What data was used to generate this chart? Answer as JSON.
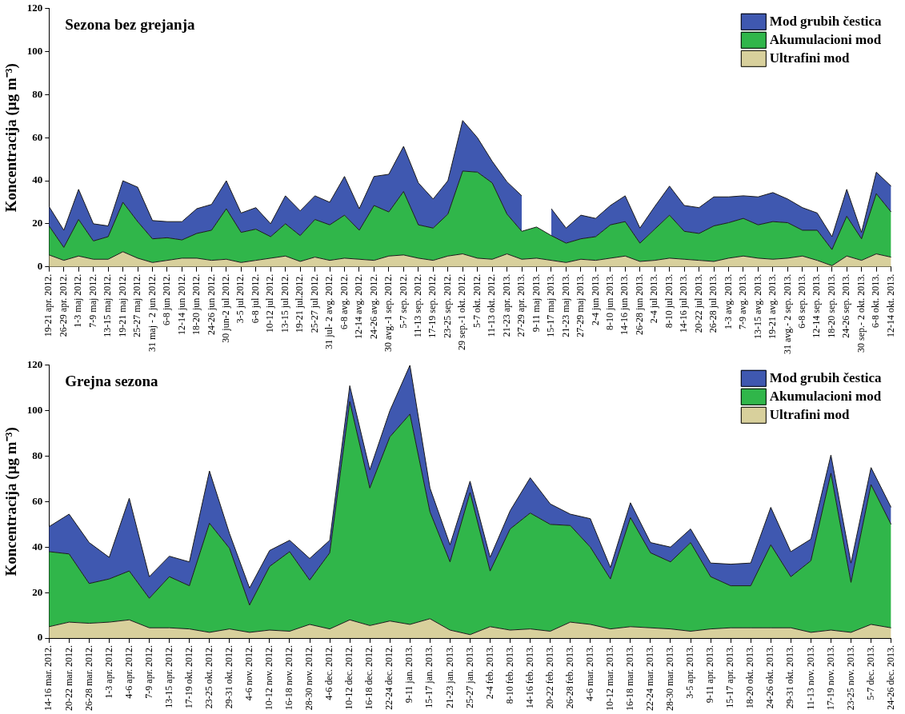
{
  "chart_data": [
    {
      "type": "area",
      "title": "Sezona bez grejanja",
      "ylabel": "Koncentracija (µg m⁻³)",
      "stacked": true,
      "legend": "top right",
      "ylim": [
        0,
        120
      ],
      "yticks": [
        0,
        20,
        40,
        60,
        80,
        100,
        120
      ],
      "categories": [
        "19-21 apr. 2012.",
        "26-29 apr. 2012.",
        "1-3 maj 2012.",
        "7-9 maj 2012.",
        "13-15 maj 2012.",
        "19-21 maj 2012.",
        "25-27 maj 2012.",
        "31 maj - 2 jun 2012.",
        "6-8 jun 2012.",
        "12-14 jun 2012.",
        "18-20 jun 2012.",
        "24-26 jun 2012.",
        "30 jun-2 jul 2012.",
        "3-5 jul 2012.",
        "6-8 jul 2012.",
        "10-12 jul 2012.",
        "13-15 jul 2012.",
        "19-21 jul.2012.",
        "25-27 jul 2012.",
        "31 jul- 2 avg. 2012.",
        "6-8 avg. 2012.",
        "12-14 avg. 2012.",
        "24-26 avg. 2012.",
        "30 avg.-1 sep. 2012.",
        "5-7 sep. 2012.",
        "11-13 sep. 2012.",
        "17-19 sep. 2012.",
        "23-25 sep. 2012.",
        "29 sep.-1 okt. 2012.",
        "5-7 okt. 2012.",
        "11-13 okt. 2012.",
        "21-23 apr. 2013.",
        "27-29 apr. 2013.",
        "9-11 maj 2013.",
        "15-17 maj 2013.",
        "21-23 maj 2013.",
        "27-29 maj 2013.",
        "2-4 jun 2013.",
        "8-10 jun 2013.",
        "14-16 jun 2013.",
        "26-28 jun 2013.",
        "2-4 jul 2013.",
        "8-10 jul 2013.",
        "14-16 jul 2013.",
        "20-22 jul 2013.",
        "26-28 jul 2013.",
        "1-3 avg. 2013.",
        "7-9 avg. 2013.",
        "13-15 avg. 2013.",
        "19-21 avg. 2013.",
        "31 avg.- 2 sep. 2013.",
        "6-8 sep. 2013.",
        "12-14 sep. 2013.",
        "18-20 sep. 2013.",
        "24-26 sep. 2013.",
        "30 sep.- 2 okt. 2013.",
        "6-8 okt. 2013.",
        "12-14 okt. 2013."
      ],
      "series": [
        {
          "name": "Ultrafini mod",
          "color": "#d8d09c",
          "values": [
            5.5,
            3,
            5,
            3.5,
            3.5,
            7,
            4,
            2,
            3,
            4,
            4,
            3,
            3.5,
            2,
            3,
            4,
            5,
            2.5,
            4.5,
            3,
            4,
            3.5,
            3,
            5,
            5.5,
            4,
            3,
            5,
            6,
            4,
            3.5,
            6,
            3.5,
            4,
            3,
            2,
            3.5,
            3,
            4,
            5,
            2.5,
            3,
            4,
            3.5,
            3,
            2.5,
            4,
            5,
            4,
            3.5,
            4,
            5,
            3,
            0.5,
            5,
            3,
            6,
            4.5
          ]
        },
        {
          "name": "Akumulacioni mod",
          "color": "#30b64a",
          "values": [
            13.5,
            6,
            17,
            8.5,
            10.5,
            23,
            17,
            11,
            10.5,
            8.5,
            11.5,
            14,
            23.5,
            14,
            14.5,
            10,
            15,
            12,
            17.5,
            16.5,
            20,
            13.5,
            25.5,
            20.5,
            29.5,
            15.5,
            15,
            19.5,
            38.5,
            40,
            35.5,
            18.5,
            13,
            14.5,
            11.5,
            9,
            9.5,
            11,
            15.5,
            16,
            8.5,
            14.5,
            20,
            13,
            12.5,
            16.5,
            16.5,
            17.5,
            15.5,
            17.5,
            16.5,
            12,
            14,
            7.5,
            18.5,
            10,
            28,
            21
          ]
        },
        {
          "name": "Mod grubih čestica",
          "color": "#3f58b0",
          "values": [
            9,
            8,
            14,
            8,
            5,
            10,
            16,
            8.5,
            7.5,
            8.5,
            11.5,
            12,
            13,
            9,
            10,
            6,
            13,
            11.5,
            11,
            10.5,
            18,
            10,
            13.5,
            17.5,
            21,
            19.5,
            13.5,
            15.5,
            23.5,
            16,
            10,
            15,
            16.5,
            null,
            12.5,
            7,
            11,
            8.5,
            9,
            12,
            7,
            10.5,
            13.5,
            12,
            12,
            13.5,
            12,
            10.5,
            13,
            13.5,
            11,
            10.5,
            8,
            6,
            12.5,
            3,
            10,
            12
          ]
        }
      ]
    },
    {
      "type": "area",
      "title": "Grejna sezona",
      "ylabel": "Koncentracija (µg m⁻³)",
      "stacked": true,
      "legend": "top right",
      "ylim": [
        0,
        120
      ],
      "yticks": [
        0,
        20,
        40,
        60,
        80,
        100,
        120
      ],
      "categories": [
        "14-16 mar. 2012.",
        "20-22 mar. 2012.",
        "26-28 mar. 2012.",
        "1-3 apr. 2012.",
        "4-6 apr. 2012.",
        "7-9 apr. 2012.",
        "13-15 apr. 2012.",
        "17-19 okt. 2012.",
        "23-25 okt. 2012.",
        "29-31 okt. 2012.",
        "4-6 nov. 2012.",
        "10-12 nov. 2012.",
        "16-18 nov. 2012.",
        "28-30 nov. 2012.",
        "4-6 dec. 2012.",
        "10-12 dec. 2012.",
        "16-18 dec. 2012.",
        "22-24 dec. 2012.",
        "9-11 jan. 2013.",
        "15-17 jan. 2013.",
        "21-23 jan. 2013.",
        "25-27 jan. 2013.",
        "2-4 feb. 2013.",
        "8-10 feb. 2013.",
        "14-16 feb. 2013.",
        "20-22 feb. 2013.",
        "26-28 feb. 2013.",
        "4-6 mar. 2013.",
        "10-12 mar. 2013.",
        "16-18 mar. 2013.",
        "22-24 mar. 2013.",
        "28-30 mar. 2013.",
        "3-5 apr. 2013.",
        "9-11 apr. 2013.",
        "15-17 apr. 2013.",
        "18-20 okt. 2013.",
        "24-26 okt. 2013.",
        "29-31 okt. 2013.",
        "11-13 nov. 2013.",
        "17-19 nov. 2013.",
        "23-25 nov. 2013.",
        "5-7 dec. 2013.",
        "24-26 dec. 2013."
      ],
      "series": [
        {
          "name": "Ultrafini mod",
          "color": "#d8d09c",
          "values": [
            5,
            7,
            6.5,
            7,
            8,
            4.5,
            4.5,
            4,
            2.5,
            4,
            2.5,
            3.5,
            3,
            6,
            4,
            8,
            5.5,
            7.5,
            6,
            8.5,
            3.5,
            1.5,
            5,
            3.5,
            4,
            3,
            7,
            6,
            4,
            5,
            4.5,
            4,
            3,
            4,
            4.5,
            4.5,
            4.5,
            4.5,
            2.5,
            3.5,
            2.5,
            6,
            4.5
          ]
        },
        {
          "name": "Akumulacioni mod",
          "color": "#30b64a",
          "values": [
            33,
            30,
            17.5,
            19,
            21.5,
            13,
            22.5,
            19,
            48,
            35.5,
            12,
            28,
            35,
            19.5,
            33.5,
            96,
            60.5,
            81,
            92.5,
            47,
            30,
            62.5,
            24.5,
            44.5,
            51,
            47,
            42.5,
            34,
            22,
            48,
            33,
            29.5,
            39,
            23,
            18.5,
            18.5,
            36.5,
            22.5,
            31.5,
            69,
            22,
            61.5,
            45.5
          ]
        },
        {
          "name": "Mod grubih čestica",
          "color": "#3f58b0",
          "values": [
            11,
            17.5,
            18,
            9.5,
            32,
            9.5,
            9,
            10.5,
            23,
            6.5,
            7.5,
            7,
            5,
            9.5,
            5.5,
            7,
            8,
            11.5,
            21.5,
            10.5,
            7.5,
            5,
            6,
            8,
            15.5,
            9,
            5,
            12.5,
            5,
            6.5,
            4.5,
            6.5,
            6,
            6,
            9.5,
            10,
            16.5,
            11,
            9.5,
            8,
            8.5,
            7.5,
            7.5
          ]
        }
      ]
    }
  ]
}
